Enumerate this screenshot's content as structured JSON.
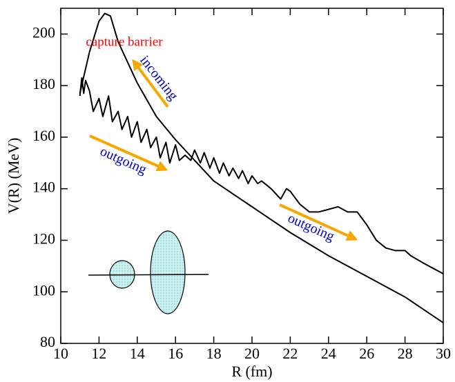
{
  "chart_data": {
    "type": "line",
    "xlabel": "R (fm)",
    "ylabel": "V(R)  (MeV)",
    "xlim": [
      10,
      30
    ],
    "ylim": [
      80,
      210
    ],
    "xticks": [
      10,
      12,
      14,
      16,
      18,
      20,
      22,
      24,
      26,
      28,
      30
    ],
    "yticks": [
      80,
      100,
      120,
      140,
      160,
      180,
      200
    ],
    "series": [
      {
        "color": "#000000",
        "x": [
          11.0,
          11.5,
          12.0,
          12.3,
          12.6,
          13.0,
          14.0,
          15.0,
          16.0,
          17.0,
          18.0,
          19.0,
          20.0,
          22.0,
          24.0,
          26.0,
          28.0,
          30.0
        ],
        "values": [
          177,
          193,
          205,
          208,
          207,
          197,
          181,
          168,
          159,
          151,
          143,
          138,
          133,
          123,
          114,
          106,
          98,
          88
        ]
      },
      {
        "color": "#000000",
        "x": [
          11.0,
          11.1,
          11.2,
          11.3,
          11.5,
          11.7,
          12.0,
          12.2,
          12.5,
          12.7,
          13.0,
          13.2,
          13.5,
          13.7,
          14.0,
          14.2,
          14.5,
          14.7,
          15.0,
          15.2,
          15.5,
          15.7,
          16.0,
          16.2,
          16.5,
          16.8,
          17.0,
          17.3,
          17.5,
          17.8,
          18.0,
          18.3,
          18.5,
          18.8,
          19.0,
          19.3,
          19.5,
          19.8,
          20.0,
          20.3,
          20.5,
          21.0,
          21.5,
          21.8,
          22.0,
          22.5,
          23.0,
          23.5,
          24.0,
          24.5,
          25.0,
          25.3,
          25.5,
          26.0,
          26.5,
          27.0,
          27.5,
          28.0,
          28.3,
          29.0,
          30.0
        ],
        "values": [
          176,
          183,
          177,
          182,
          178,
          170,
          175,
          168,
          176,
          166,
          170,
          163,
          168,
          160,
          166,
          158,
          163,
          156,
          160,
          152,
          158,
          150,
          157,
          151,
          153,
          151,
          155,
          150,
          154,
          148,
          152,
          146,
          150,
          145,
          148,
          144,
          147,
          142,
          145,
          142,
          143,
          140,
          136,
          140,
          139,
          134,
          131,
          131,
          132,
          133,
          131,
          131,
          131,
          126,
          120,
          117,
          116,
          116,
          114,
          111,
          107
        ]
      }
    ],
    "annotations": [
      {
        "text": "capture barrier",
        "color": "#ff0000"
      },
      {
        "text": "incoming",
        "color": "#0000cc"
      },
      {
        "text": "outgoing",
        "color": "#0000cc"
      },
      {
        "text": "outgoing",
        "color": "#0000cc"
      }
    ]
  }
}
